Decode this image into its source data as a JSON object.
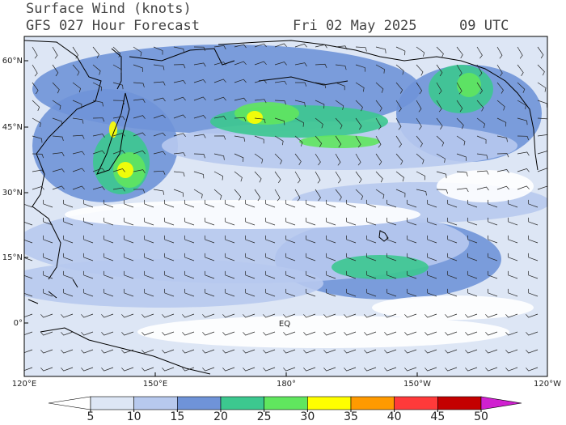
{
  "header": {
    "title": "Surface Wind (knots)",
    "subtitle": "GFS 027 Hour Forecast",
    "date": "Fri 02 May 2025",
    "time": "09 UTC"
  },
  "map": {
    "latitude_labels": [
      "60°N",
      "45°N",
      "30°N",
      "15°N",
      "0°"
    ],
    "longitude_labels": [
      "120°E",
      "150°E",
      "180°",
      "150°W",
      "120°W"
    ],
    "place_labels": [
      "EQ"
    ]
  },
  "colorbar": {
    "levels": [
      5,
      10,
      15,
      20,
      25,
      30,
      35,
      40,
      45,
      50
    ],
    "colors": [
      "#ffffff",
      "#dde6f5",
      "#b7c9ee",
      "#6f93d8",
      "#3cc88f",
      "#60e65e",
      "#ffff00",
      "#ff9a00",
      "#ff3a3a",
      "#c40000",
      "#d020d0"
    ]
  }
}
